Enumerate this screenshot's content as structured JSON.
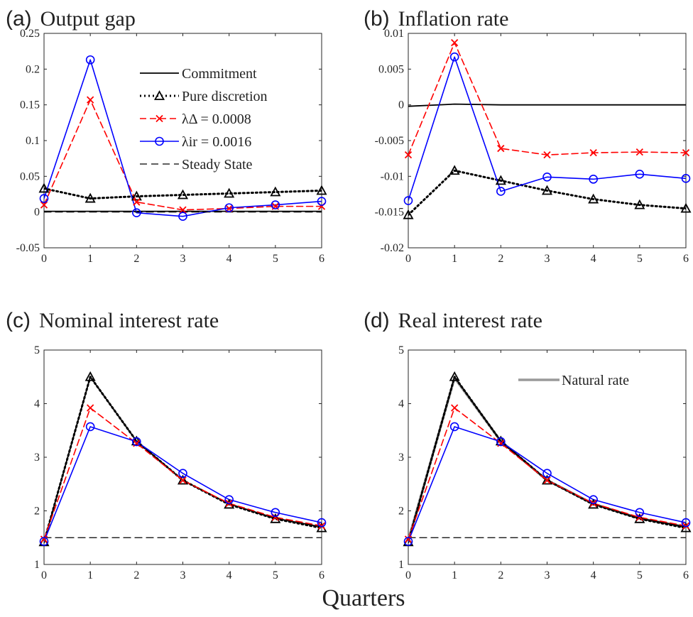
{
  "figure": {
    "xlabel": "Quarters"
  },
  "legend": {
    "commitment": "Commitment",
    "pure_discretion": "Pure discretion",
    "lambda_delta": "λΔ = 0.0008",
    "lambda_ir": "λir = 0.0016",
    "steady_state": "Steady State",
    "natural_rate": "Natural rate"
  },
  "colors": {
    "commitment": "#000000",
    "pure_discretion": "#000000",
    "lambda_delta": "#ff0000",
    "lambda_ir": "#0000ff",
    "steady_state": "#000000",
    "natural_rate": "#999999"
  },
  "chart_data": [
    {
      "type": "line",
      "panel_letter": "(a)",
      "title": "Output gap",
      "x": [
        0,
        1,
        2,
        3,
        4,
        5,
        6
      ],
      "xlim": [
        0,
        6
      ],
      "ylim": [
        -0.05,
        0.25
      ],
      "yticks": [
        "-0.05",
        "0",
        "0.05",
        "0.1",
        "0.15",
        "0.2",
        "0.25"
      ],
      "ytick_values": [
        -0.05,
        0,
        0.05,
        0.1,
        0.15,
        0.2,
        0.25
      ],
      "series": [
        {
          "key": "commitment",
          "name": "Commitment",
          "values": [
            0.001,
            0.001,
            0.001,
            0.001,
            0.001,
            0.001,
            0.001
          ]
        },
        {
          "key": "pure_discretion",
          "name": "Pure discretion",
          "values": [
            0.033,
            0.019,
            0.022,
            0.024,
            0.026,
            0.028,
            0.03
          ]
        },
        {
          "key": "lambda_delta",
          "name": "λΔ = 0.0008",
          "values": [
            0.01,
            0.157,
            0.014,
            0.003,
            0.005,
            0.008,
            0.008
          ]
        },
        {
          "key": "lambda_ir",
          "name": "λir = 0.0016",
          "values": [
            0.019,
            0.213,
            -0.001,
            -0.006,
            0.006,
            0.01,
            0.015
          ]
        },
        {
          "key": "steady_state",
          "name": "Steady State",
          "values": [
            0,
            0,
            0,
            0,
            0,
            0,
            0
          ]
        }
      ],
      "legend_position": "top-right"
    },
    {
      "type": "line",
      "panel_letter": "(b)",
      "title": "Inflation rate",
      "x": [
        0,
        1,
        2,
        3,
        4,
        5,
        6
      ],
      "xlim": [
        0,
        6
      ],
      "ylim": [
        -0.02,
        0.01
      ],
      "yticks": [
        "-0.02",
        "-0.015",
        "-0.01",
        "-0.005",
        "0",
        "0.005",
        "0.01"
      ],
      "ytick_values": [
        -0.02,
        -0.015,
        -0.01,
        -0.005,
        0,
        0.005,
        0.01
      ],
      "series": [
        {
          "key": "commitment",
          "values": [
            -0.0002,
            0.0001,
            0.0,
            0.0,
            0.0,
            0.0,
            0.0
          ]
        },
        {
          "key": "pure_discretion",
          "values": [
            -0.0154,
            -0.0092,
            -0.0106,
            -0.012,
            -0.0132,
            -0.014,
            -0.0145
          ]
        },
        {
          "key": "lambda_delta",
          "values": [
            -0.007,
            0.0087,
            -0.0061,
            -0.007,
            -0.0067,
            -0.0066,
            -0.0067
          ]
        },
        {
          "key": "lambda_ir",
          "values": [
            -0.0134,
            0.0067,
            -0.0121,
            -0.0101,
            -0.0104,
            -0.0097,
            -0.0103
          ]
        }
      ]
    },
    {
      "type": "line",
      "panel_letter": "(c)",
      "title": "Nominal interest rate",
      "x": [
        0,
        1,
        2,
        3,
        4,
        5,
        6
      ],
      "xlim": [
        0,
        6
      ],
      "ylim": [
        1,
        5
      ],
      "yticks": [
        "1",
        "2",
        "3",
        "4",
        "5"
      ],
      "ytick_values": [
        1,
        2,
        3,
        4,
        5
      ],
      "series": [
        {
          "key": "commitment",
          "values": [
            1.42,
            4.5,
            3.3,
            2.57,
            2.13,
            1.86,
            1.7
          ]
        },
        {
          "key": "pure_discretion",
          "values": [
            1.42,
            4.5,
            3.3,
            2.57,
            2.12,
            1.85,
            1.68
          ]
        },
        {
          "key": "lambda_delta",
          "values": [
            1.47,
            3.92,
            3.26,
            2.57,
            2.14,
            1.88,
            1.72
          ]
        },
        {
          "key": "lambda_ir",
          "values": [
            1.43,
            3.57,
            3.29,
            2.7,
            2.21,
            1.97,
            1.78
          ]
        },
        {
          "key": "steady_state",
          "values": [
            1.5,
            1.5,
            1.5,
            1.5,
            1.5,
            1.5,
            1.5
          ]
        }
      ]
    },
    {
      "type": "line",
      "panel_letter": "(d)",
      "title": "Real interest rate",
      "x": [
        0,
        1,
        2,
        3,
        4,
        5,
        6
      ],
      "xlim": [
        0,
        6
      ],
      "ylim": [
        1,
        5
      ],
      "yticks": [
        "1",
        "2",
        "3",
        "4",
        "5"
      ],
      "ytick_values": [
        1,
        2,
        3,
        4,
        5
      ],
      "series": [
        {
          "key": "natural_rate",
          "values": [
            1.45,
            4.48,
            3.3,
            2.57,
            2.13,
            1.86,
            1.7
          ]
        },
        {
          "key": "commitment",
          "values": [
            1.42,
            4.5,
            3.3,
            2.57,
            2.13,
            1.86,
            1.7
          ]
        },
        {
          "key": "pure_discretion",
          "values": [
            1.42,
            4.5,
            3.3,
            2.57,
            2.12,
            1.85,
            1.68
          ]
        },
        {
          "key": "lambda_delta",
          "values": [
            1.47,
            3.92,
            3.26,
            2.57,
            2.14,
            1.88,
            1.72
          ]
        },
        {
          "key": "lambda_ir",
          "values": [
            1.43,
            3.57,
            3.29,
            2.7,
            2.21,
            1.97,
            1.78
          ]
        },
        {
          "key": "steady_state",
          "values": [
            1.5,
            1.5,
            1.5,
            1.5,
            1.5,
            1.5,
            1.5
          ]
        }
      ],
      "legend_position": "top-right"
    }
  ]
}
